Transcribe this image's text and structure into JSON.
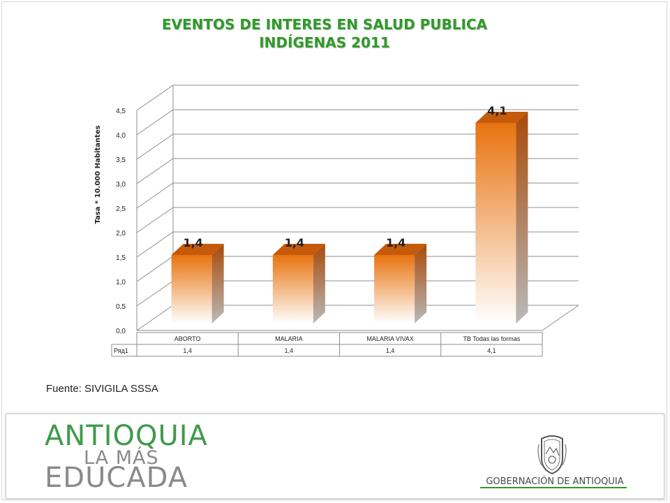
{
  "chart_data": {
    "type": "bar",
    "title": "EVENTOS DE INTERES EN SALUD PUBLICA",
    "subtitle": "INDÍGENAS 2011",
    "ylabel": "Tasa * 10.000 Habitantes",
    "xlabel": "",
    "ylim": [
      0,
      4.5
    ],
    "y_ticks": [
      "0,0",
      "0,5",
      "1,0",
      "1,5",
      "2,0",
      "2,5",
      "3,0",
      "3,5",
      "4,0",
      "4,5"
    ],
    "categories": [
      "ABORTO",
      "MALARIA",
      "MALARIA VIVAX",
      "TB Todas las formas"
    ],
    "series": [
      {
        "name": "Ряд1",
        "values": [
          1.4,
          1.4,
          1.4,
          4.1
        ],
        "labels": [
          "1,4",
          "1,4",
          "1,4",
          "4,1"
        ]
      }
    ],
    "grid": true,
    "legend": "none",
    "data_table": true,
    "bar_color": "#e8730f",
    "bar_fade_color": "#ffffff",
    "grid_color": "#8c8c8c"
  },
  "source": "Fuente: SIVIGILA SSSA",
  "footer": {
    "logo_line1": "ANTIOQUIA",
    "logo_line2": "LA MÁS",
    "logo_line3": "EDUCADA",
    "org_name": "GOBERNACIÓN DE ANTIOQUIA",
    "seal_icon": "coat-of-arms-icon"
  }
}
